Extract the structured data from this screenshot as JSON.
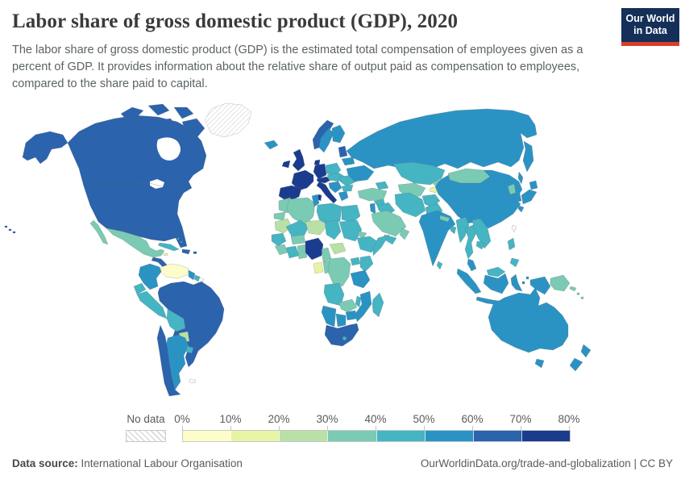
{
  "header": {
    "title": "Labor share of gross domestic product (GDP), 2020",
    "subtitle": "The labor share of gross domestic product (GDP) is the estimated total compensation of employees given as a percent of GDP. It provides information about the relative share of output paid as compensation to employees, compared to the share paid to capital.",
    "logo": {
      "line1": "Our World",
      "line2": "in Data",
      "bg_color": "#143059",
      "accent_color": "#d63f2c"
    }
  },
  "palette": {
    "b0": "#fdfdca",
    "b1": "#e6f4a4",
    "b2": "#b9e0a6",
    "b3": "#7bcab3",
    "b4": "#45b4c3",
    "b5": "#2b93c4",
    "b6": "#2b63ac",
    "b7": "#1b3c8e"
  },
  "legend": {
    "no_data_label": "No data",
    "tick_labels": [
      "0%",
      "10%",
      "20%",
      "30%",
      "40%",
      "50%",
      "60%",
      "70%",
      "80%"
    ],
    "bins": [
      {
        "bin": "b0",
        "range": "0-10%"
      },
      {
        "bin": "b1",
        "range": "10-20%"
      },
      {
        "bin": "b2",
        "range": "20-30%"
      },
      {
        "bin": "b3",
        "range": "30-40%"
      },
      {
        "bin": "b4",
        "range": "40-50%"
      },
      {
        "bin": "b5",
        "range": "50-60%"
      },
      {
        "bin": "b6",
        "range": "60-70%"
      },
      {
        "bin": "b7",
        "range": "70-80%"
      }
    ]
  },
  "footer": {
    "source_label": "Data source:",
    "source_value": " International Labour Organisation",
    "link": "OurWorldinData.org/trade-and-globalization",
    "separator": " | ",
    "license": "CC BY"
  },
  "chart_data": {
    "type": "heatmap",
    "variant": "world-choropleth",
    "title": "Labor share of gross domestic product (GDP), 2020",
    "unit": "% of GDP",
    "legend_range": [
      0,
      80
    ],
    "legend_bin_width": 10,
    "colors_low_to_high": [
      "#fdfdca",
      "#e6f4a4",
      "#b9e0a6",
      "#7bcab3",
      "#45b4c3",
      "#2b93c4",
      "#2b63ac",
      "#1b3c8e"
    ],
    "countries_by_bin": {
      "70-80%": [
        "France",
        "Germany",
        "United Kingdom",
        "Ireland",
        "Spain",
        "Portugal",
        "Italy",
        "Switzerland",
        "Austria",
        "Denmark",
        "Nigeria"
      ],
      "60-70%": [
        "United States",
        "Canada",
        "Brazil",
        "Chile",
        "South Africa",
        "Norway",
        "Estonia/Latvia",
        "Dominican Republic",
        "Honduras/Nicaragua"
      ],
      "50-60%": [
        "Russia",
        "China",
        "India",
        "Japan",
        "South Korea",
        "Australia",
        "New Zealand",
        "Argentina",
        "Colombia",
        "Sweden",
        "Finland",
        "Belarus",
        "Ukraine",
        "Serbia/Croatia",
        "Greece",
        "Tunisia",
        "Tanzania",
        "Mozambique",
        "Zimbabwe",
        "Namibia",
        "Botswana",
        "Indonesia",
        "Malaysia",
        "Guyana"
      ],
      "40-50%": [
        "Peru",
        "Bolivia",
        "Ecuador",
        "Uruguay",
        "Cuba",
        "Mexico-neighbors (Costa Rica/Panama)",
        "Poland",
        "Czechia/Slovakia/Hungary",
        "Romania",
        "Bulgaria",
        "Kazakhstan",
        "Iran",
        "Iraq",
        "Pakistan",
        "Afghanistan",
        "Egypt",
        "Libya",
        "Sudan",
        "Ethiopia",
        "Somalia",
        "Kenya",
        "Uganda",
        "Mali",
        "Chad",
        "Senegal",
        "Ivory Coast",
        "Angola",
        "Malawi",
        "Madagascar",
        "Yemen",
        "Bangladesh",
        "Sri Lanka",
        "Myanmar",
        "Thailand",
        "Vietnam",
        "Laos",
        "Cambodia",
        "Philippines",
        "Suriname"
      ],
      "30-40%": [
        "Mexico",
        "Mongolia",
        "Turkey",
        "Morocco",
        "Algeria",
        "Western Sahara",
        "Saudi Arabia",
        "Oman",
        "Eritrea",
        "North Korea",
        "Papua New Guinea",
        "Uzbekistan/Turkmenistan",
        "Kyrgyzstan",
        "Nepal",
        "Guinea",
        "Ghana/Togo/Benin",
        "Burkina Faso",
        "Cameroon",
        "Congo",
        "DR Congo",
        "Zambia"
      ],
      "20-30%": [
        "Mauritania",
        "Niger",
        "Central African Republic",
        "Paraguay"
      ],
      "10-20%": [
        "Gabon",
        "Tajikistan",
        "Jamaica"
      ],
      "0-10%": [
        "Venezuela"
      ],
      "No data": [
        "Greenland",
        "French Guiana",
        "Taiwan",
        "Falkland Islands"
      ]
    }
  }
}
